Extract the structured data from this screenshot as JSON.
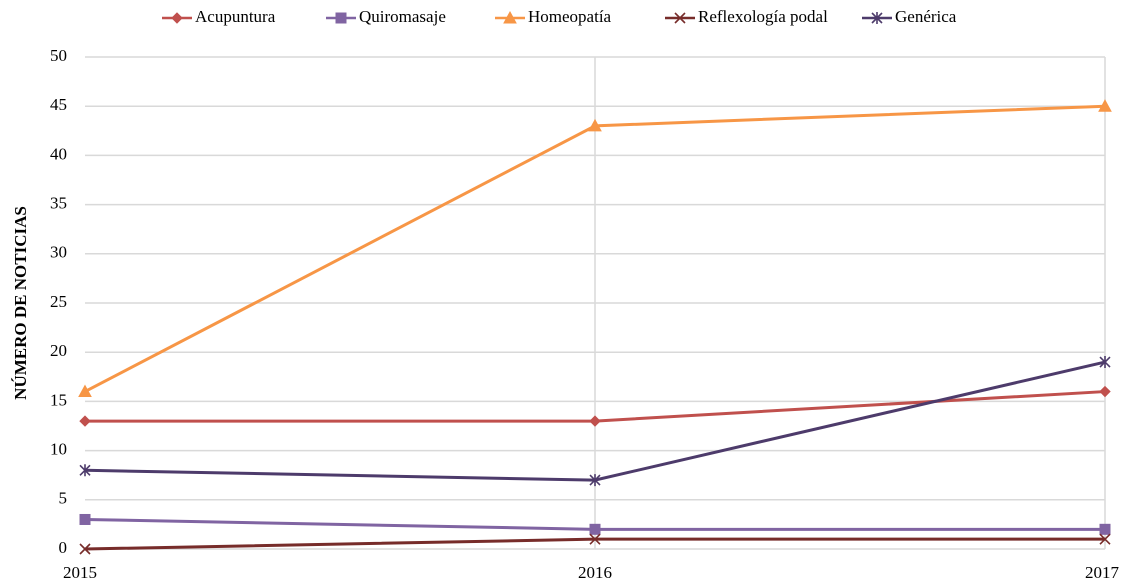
{
  "chart_data": {
    "type": "line",
    "y_label": "NÚMERO DE NOTICIAS",
    "categories": [
      "2015",
      "2016",
      "2017"
    ],
    "series": [
      {
        "name": "Acupuntura",
        "color": "#c0504d",
        "marker": "diamond",
        "values": [
          13,
          13,
          16
        ]
      },
      {
        "name": "Quiromasaje",
        "color": "#8064a2",
        "marker": "square",
        "values": [
          3,
          2,
          2
        ]
      },
      {
        "name": "Homeopatía",
        "color": "#f79646",
        "marker": "triangle",
        "values": [
          16,
          43,
          45
        ]
      },
      {
        "name": "Reflexología podal",
        "color": "#772c2a",
        "marker": "x",
        "values": [
          0,
          1,
          1
        ]
      },
      {
        "name": "Genérica",
        "color": "#4d3b6b",
        "marker": "star",
        "values": [
          8,
          7,
          19
        ]
      }
    ],
    "ylim": [
      0,
      50
    ],
    "yticks": [
      0,
      5,
      10,
      15,
      20,
      25,
      30,
      35,
      40,
      45,
      50
    ],
    "grid": true,
    "legend": "top"
  }
}
